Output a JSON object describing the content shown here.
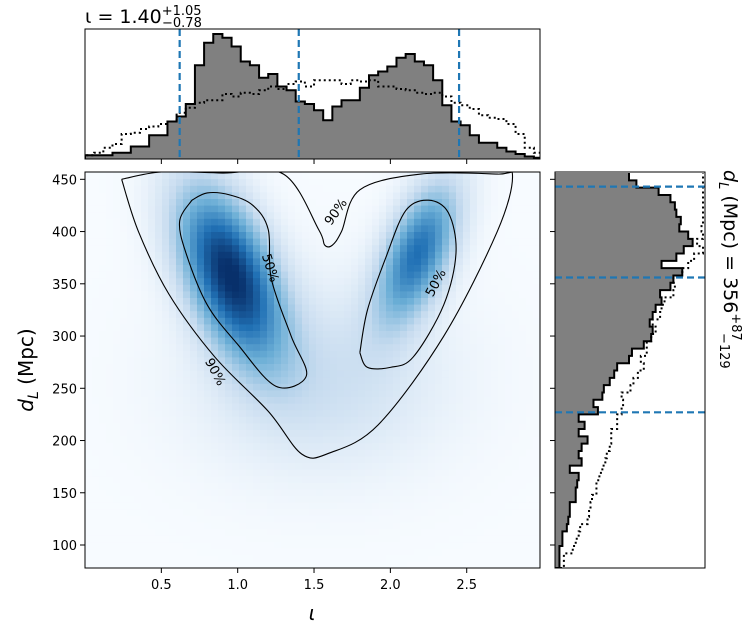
{
  "chart_data": [
    {
      "panel": "top-marginal",
      "type": "histogram",
      "param": "ι",
      "title_text": "ι = 1.40",
      "title_sup": "+1.05",
      "title_sub": "−0.78",
      "xlim": [
        0.0,
        2.98
      ],
      "quantiles": [
        0.62,
        1.4,
        2.45
      ],
      "bins_x": [
        0.0,
        0.06,
        0.12,
        0.18,
        0.24,
        0.3,
        0.36,
        0.42,
        0.48,
        0.54,
        0.6,
        0.66,
        0.72,
        0.78,
        0.84,
        0.9,
        0.96,
        1.02,
        1.08,
        1.14,
        1.2,
        1.26,
        1.32,
        1.38,
        1.44,
        1.5,
        1.56,
        1.62,
        1.68,
        1.74,
        1.8,
        1.86,
        1.92,
        1.98,
        2.04,
        2.1,
        2.16,
        2.22,
        2.28,
        2.34,
        2.4,
        2.46,
        2.52,
        2.58,
        2.64,
        2.7,
        2.76,
        2.82,
        2.88,
        2.94
      ],
      "posterior": [
        0.03,
        0.03,
        0.03,
        0.05,
        0.05,
        0.1,
        0.1,
        0.19,
        0.19,
        0.3,
        0.34,
        0.44,
        0.75,
        0.93,
        1.0,
        0.97,
        0.9,
        0.78,
        0.75,
        0.65,
        0.68,
        0.58,
        0.55,
        0.46,
        0.44,
        0.39,
        0.31,
        0.42,
        0.47,
        0.47,
        0.57,
        0.67,
        0.7,
        0.74,
        0.81,
        0.84,
        0.78,
        0.75,
        0.63,
        0.43,
        0.3,
        0.27,
        0.19,
        0.13,
        0.13,
        0.09,
        0.06,
        0.04,
        0.02,
        0.01
      ],
      "prior": [
        0.03,
        0.05,
        0.09,
        0.12,
        0.2,
        0.21,
        0.24,
        0.26,
        0.28,
        0.3,
        0.37,
        0.41,
        0.45,
        0.47,
        0.47,
        0.52,
        0.5,
        0.53,
        0.52,
        0.55,
        0.58,
        0.56,
        0.6,
        0.62,
        0.58,
        0.63,
        0.63,
        0.63,
        0.6,
        0.63,
        0.62,
        0.63,
        0.58,
        0.58,
        0.56,
        0.55,
        0.53,
        0.52,
        0.53,
        0.5,
        0.45,
        0.43,
        0.4,
        0.35,
        0.33,
        0.32,
        0.28,
        0.2,
        0.09,
        0.05
      ]
    },
    {
      "panel": "2d-density",
      "type": "heatmap",
      "xlabel": "ι",
      "ylabel_main": "d",
      "ylabel_sub": "L",
      "ylabel_tail": " (Mpc)",
      "xlim": [
        0.0,
        2.98
      ],
      "ylim": [
        78,
        457
      ],
      "xticks": [
        0.5,
        1.0,
        1.5,
        2.0,
        2.5
      ],
      "xtick_labels": [
        "0.5",
        "1.0",
        "1.5",
        "2.0",
        "2.5"
      ],
      "yticks": [
        100,
        150,
        200,
        250,
        300,
        350,
        400,
        450
      ],
      "ytick_labels": [
        "100",
        "150",
        "200",
        "250",
        "300",
        "350",
        "400",
        "450"
      ],
      "modes": [
        {
          "x": 0.95,
          "y": 360,
          "sx": 0.23,
          "sy": 55,
          "rho": -0.5,
          "amp": 1.0
        },
        {
          "x": 2.18,
          "y": 380,
          "sx": 0.18,
          "sy": 45,
          "rho": 0.55,
          "amp": 0.72
        },
        {
          "x": 1.55,
          "y": 260,
          "sx": 0.55,
          "sy": 60,
          "rho": 0.0,
          "amp": 0.18
        }
      ],
      "contour_labels": [
        "90%",
        "50%",
        "50%",
        "90%"
      ],
      "contours": {
        "c90": [
          [
            0.24,
            450
          ],
          [
            0.35,
            400
          ],
          [
            0.55,
            340
          ],
          [
            0.85,
            280
          ],
          [
            1.2,
            228
          ],
          [
            1.42,
            187
          ],
          [
            1.6,
            188
          ],
          [
            1.92,
            215
          ],
          [
            2.35,
            300
          ],
          [
            2.7,
            400
          ],
          [
            2.8,
            452
          ],
          [
            2.7,
            455
          ],
          [
            2.2,
            455
          ],
          [
            1.8,
            440
          ],
          [
            1.68,
            400
          ],
          [
            1.62,
            387
          ],
          [
            1.57,
            387
          ],
          [
            1.53,
            402
          ],
          [
            1.3,
            455
          ],
          [
            0.9,
            456
          ],
          [
            0.5,
            457
          ],
          [
            0.24,
            450
          ]
        ],
        "c50_left": [
          [
            0.7,
            430
          ],
          [
            0.8,
            437
          ],
          [
            0.95,
            435
          ],
          [
            1.1,
            425
          ],
          [
            1.2,
            402
          ],
          [
            1.22,
            355
          ],
          [
            1.35,
            300
          ],
          [
            1.45,
            262
          ],
          [
            1.25,
            252
          ],
          [
            1.0,
            292
          ],
          [
            0.8,
            330
          ],
          [
            0.66,
            380
          ],
          [
            0.62,
            410
          ],
          [
            0.7,
            430
          ]
        ],
        "c50_right": [
          [
            1.8,
            284
          ],
          [
            1.85,
            325
          ],
          [
            1.97,
            375
          ],
          [
            2.1,
            420
          ],
          [
            2.25,
            430
          ],
          [
            2.38,
            418
          ],
          [
            2.43,
            380
          ],
          [
            2.35,
            330
          ],
          [
            2.15,
            280
          ],
          [
            2.0,
            270
          ],
          [
            1.85,
            270
          ],
          [
            1.8,
            284
          ]
        ]
      }
    },
    {
      "panel": "right-marginal",
      "type": "histogram",
      "param": "d_L",
      "title_main": "d",
      "title_sub": "L",
      "title_tail": " (Mpc) = 356",
      "title_sup_val": "+87",
      "title_sub_val": "−129",
      "ylim": [
        78,
        457
      ],
      "quantiles": [
        227,
        356,
        443
      ],
      "bins_y": [
        78,
        85,
        92,
        99,
        106,
        113,
        120,
        127,
        134,
        141,
        148,
        155,
        162,
        169,
        176,
        183,
        190,
        197,
        204,
        211,
        218,
        225,
        232,
        239,
        246,
        253,
        260,
        267,
        274,
        281,
        288,
        295,
        302,
        309,
        316,
        323,
        330,
        337,
        344,
        351,
        358,
        365,
        372,
        379,
        386,
        393,
        400,
        407,
        414,
        421,
        428,
        435,
        442,
        449
      ],
      "posterior": [
        0.03,
        0.03,
        0.03,
        0.05,
        0.05,
        0.08,
        0.09,
        0.1,
        0.1,
        0.14,
        0.14,
        0.15,
        0.16,
        0.1,
        0.18,
        0.16,
        0.18,
        0.22,
        0.16,
        0.2,
        0.16,
        0.29,
        0.26,
        0.32,
        0.33,
        0.37,
        0.4,
        0.42,
        0.5,
        0.52,
        0.6,
        0.65,
        0.66,
        0.64,
        0.66,
        0.68,
        0.72,
        0.71,
        0.78,
        0.8,
        0.86,
        0.72,
        0.82,
        0.87,
        0.93,
        0.9,
        0.84,
        0.85,
        0.82,
        0.81,
        0.78,
        0.7,
        0.55,
        0.5
      ],
      "prior": [
        0.06,
        0.06,
        0.12,
        0.14,
        0.16,
        0.17,
        0.22,
        0.23,
        0.24,
        0.25,
        0.28,
        0.28,
        0.3,
        0.32,
        0.34,
        0.35,
        0.37,
        0.38,
        0.38,
        0.42,
        0.42,
        0.45,
        0.46,
        0.45,
        0.51,
        0.53,
        0.56,
        0.6,
        0.58,
        0.62,
        0.62,
        0.65,
        0.68,
        0.66,
        0.71,
        0.72,
        0.74,
        0.8,
        0.81,
        0.8,
        0.86,
        0.9,
        0.94,
        1.0,
        0.96,
        1.0,
        0.99,
        1.0,
        1.0,
        1.0,
        1.0,
        1.0,
        1.0,
        1.0
      ]
    }
  ],
  "colors": {
    "hist_fill": "#808080",
    "quantile_line": "#1f77b4",
    "cmap_low": "#f7fbff",
    "cmap_high": "#08306b"
  }
}
